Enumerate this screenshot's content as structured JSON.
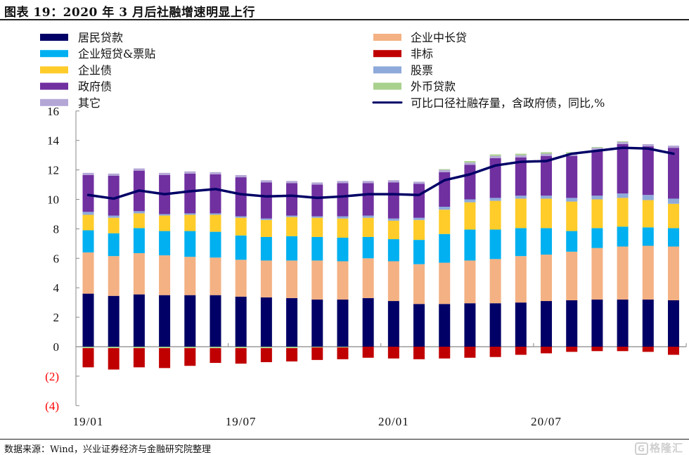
{
  "title": "图表 19：2020 年 3 月后社融增速明显上行",
  "source": "数据来源：Wind，兴业证券经济与金融研究院整理",
  "watermark": "格隆汇",
  "chart_data": {
    "type": "bar",
    "stacked": true,
    "title": "图表 19：2020 年 3 月后社融增速明显上行",
    "xlabel": "",
    "ylabel": "",
    "ylim": [
      -4,
      16
    ],
    "yticks": [
      16,
      14,
      12,
      10,
      8,
      6,
      4,
      2,
      0,
      -2,
      -4
    ],
    "ytick_labels": [
      "16",
      "14",
      "12",
      "10",
      "8",
      "6",
      "4",
      "2",
      "0",
      "(2)",
      "(4)"
    ],
    "negative_tick_color": "#ff0000",
    "grid": false,
    "legend_position": "top",
    "categories": [
      "19/01",
      "19/02",
      "19/03",
      "19/04",
      "19/05",
      "19/06",
      "19/07",
      "19/08",
      "19/09",
      "19/10",
      "19/11",
      "19/12",
      "20/01",
      "20/02",
      "20/03",
      "20/04",
      "20/05",
      "20/06",
      "20/07",
      "20/08",
      "20/09",
      "20/10",
      "20/11",
      "20/12"
    ],
    "xtick_labels": [
      {
        "index": 0,
        "label": "19/01"
      },
      {
        "index": 6,
        "label": "19/07"
      },
      {
        "index": 12,
        "label": "20/01"
      },
      {
        "index": 18,
        "label": "20/07"
      }
    ],
    "series": [
      {
        "name": "居民贷款",
        "color": "#000066",
        "kind": "bar",
        "values": [
          3.6,
          3.45,
          3.55,
          3.5,
          3.5,
          3.5,
          3.4,
          3.35,
          3.3,
          3.2,
          3.2,
          3.3,
          3.1,
          2.9,
          2.9,
          2.95,
          2.95,
          3.0,
          3.1,
          3.15,
          3.2,
          3.2,
          3.2,
          3.15
        ]
      },
      {
        "name": "企业中长贷",
        "color": "#f4b183",
        "kind": "bar",
        "values": [
          2.8,
          2.7,
          2.8,
          2.7,
          2.6,
          2.55,
          2.5,
          2.5,
          2.55,
          2.65,
          2.6,
          2.7,
          2.7,
          2.7,
          2.8,
          2.9,
          3.0,
          3.15,
          3.15,
          3.3,
          3.5,
          3.6,
          3.65,
          3.65
        ]
      },
      {
        "name": "企业短贷&票贴",
        "color": "#00b0f0",
        "kind": "bar",
        "values": [
          1.5,
          1.55,
          1.7,
          1.65,
          1.75,
          1.75,
          1.65,
          1.6,
          1.65,
          1.6,
          1.6,
          1.45,
          1.5,
          1.65,
          1.95,
          2.1,
          2.0,
          1.9,
          1.8,
          1.4,
          1.35,
          1.35,
          1.25,
          1.25
        ]
      },
      {
        "name": "企业债",
        "color": "#ffcc29",
        "kind": "bar",
        "values": [
          1.05,
          1.05,
          1.0,
          1.05,
          1.1,
          1.15,
          1.2,
          1.15,
          1.3,
          1.3,
          1.3,
          1.3,
          1.25,
          1.35,
          1.65,
          1.85,
          1.95,
          2.0,
          2.0,
          2.0,
          1.95,
          1.95,
          1.85,
          1.65
        ]
      },
      {
        "name": "股票",
        "color": "#8eaadb",
        "kind": "bar",
        "values": [
          0.2,
          0.15,
          0.15,
          0.1,
          0.1,
          0.1,
          0.1,
          0.1,
          0.1,
          0.1,
          0.15,
          0.15,
          0.15,
          0.15,
          0.2,
          0.2,
          0.2,
          0.2,
          0.2,
          0.25,
          0.25,
          0.3,
          0.35,
          0.35
        ]
      },
      {
        "name": "政府债",
        "color": "#7030a0",
        "kind": "bar",
        "values": [
          2.5,
          2.7,
          2.75,
          2.65,
          2.7,
          2.65,
          2.65,
          2.45,
          2.2,
          2.15,
          2.25,
          2.2,
          2.45,
          2.3,
          2.35,
          2.35,
          2.7,
          2.6,
          2.7,
          2.85,
          3.1,
          3.35,
          3.3,
          3.45
        ]
      },
      {
        "name": "其它",
        "color": "#b4a7d6",
        "kind": "bar",
        "values": [
          0.15,
          0.15,
          0.15,
          0.15,
          0.15,
          0.15,
          0.15,
          0.15,
          0.15,
          0.15,
          0.15,
          0.15,
          0.15,
          0.15,
          0.15,
          0.15,
          0.15,
          0.15,
          0.15,
          0.15,
          0.15,
          0.15,
          0.15,
          0.15
        ]
      },
      {
        "name": "外币贷款",
        "color": "#a9d18e",
        "kind": "bar",
        "values": [
          -0.1,
          -0.1,
          -0.1,
          -0.1,
          -0.1,
          -0.1,
          -0.1,
          -0.1,
          -0.1,
          -0.05,
          -0.05,
          0.0,
          0.0,
          0.0,
          0.05,
          0.1,
          0.1,
          0.1,
          0.1,
          0.1,
          0.05,
          0.05,
          0.0,
          0.0
        ]
      },
      {
        "name": "非标",
        "color": "#c00000",
        "kind": "bar",
        "values": [
          -1.3,
          -1.45,
          -1.3,
          -1.35,
          -1.2,
          -1.0,
          -1.05,
          -0.95,
          -0.9,
          -0.85,
          -0.8,
          -0.75,
          -0.8,
          -0.85,
          -0.8,
          -0.75,
          -0.7,
          -0.55,
          -0.45,
          -0.35,
          -0.3,
          -0.3,
          -0.35,
          -0.55
        ]
      },
      {
        "name": "可比口径社融存量，含政府债，同比,%",
        "color": "#000066",
        "kind": "line",
        "values": [
          10.3,
          10.05,
          10.6,
          10.35,
          10.55,
          10.7,
          10.35,
          10.2,
          10.25,
          10.1,
          10.2,
          10.35,
          10.35,
          10.3,
          11.3,
          11.7,
          12.3,
          12.55,
          12.6,
          13.1,
          13.3,
          13.5,
          13.45,
          13.1
        ]
      }
    ]
  },
  "legend": {
    "left": [
      {
        "label": "居民贷款",
        "color": "#000066",
        "kind": "bar"
      },
      {
        "label": "企业短贷&票贴",
        "color": "#00b0f0",
        "kind": "bar"
      },
      {
        "label": "企业债",
        "color": "#ffcc29",
        "kind": "bar"
      },
      {
        "label": "政府债",
        "color": "#7030a0",
        "kind": "bar"
      },
      {
        "label": "其它",
        "color": "#b4a7d6",
        "kind": "bar"
      }
    ],
    "right": [
      {
        "label": "企业中长贷",
        "color": "#f4b183",
        "kind": "bar"
      },
      {
        "label": "非标",
        "color": "#c00000",
        "kind": "bar"
      },
      {
        "label": "股票",
        "color": "#8eaadb",
        "kind": "bar"
      },
      {
        "label": "外币贷款",
        "color": "#a9d18e",
        "kind": "bar"
      },
      {
        "label": "可比口径社融存量，含政府债，同比,%",
        "color": "#000066",
        "kind": "line"
      }
    ]
  }
}
